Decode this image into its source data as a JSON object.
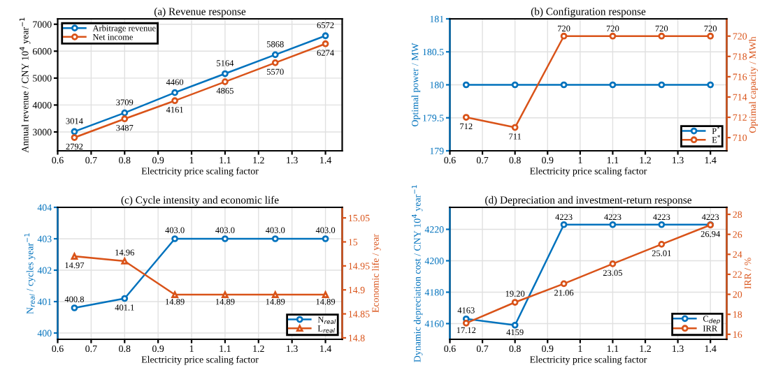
{
  "chart_data": [
    {
      "type": "line",
      "title": "(a) Revenue response",
      "xlabel": "Electricity price scaling factor",
      "ylabel": "Annual revenue / CNY 10$^{4}$ year$^{−1}$",
      "x": [
        0.65,
        0.8,
        0.95,
        1.1,
        1.25,
        1.4
      ],
      "xlim": [
        0.6,
        1.45
      ],
      "xticks": [
        0.6,
        0.7,
        0.8,
        0.9,
        1,
        1.1,
        1.2,
        1.3,
        1.4
      ],
      "ylim": [
        2300,
        7200
      ],
      "yticks": [
        3000,
        4000,
        5000,
        6000,
        7000
      ],
      "grid": true,
      "legend": "top left",
      "marker": "circle",
      "data_labels": true,
      "series": [
        {
          "name": "Arbitrage revenue",
          "color": "#0072bd",
          "values": [
            3014,
            3709,
            4460,
            5164,
            5868,
            6572
          ]
        },
        {
          "name": "Net income",
          "color": "#d95319",
          "values": [
            2792,
            3487,
            4161,
            4865,
            5570,
            6274
          ]
        }
      ]
    },
    {
      "type": "line",
      "title": "(b) Configuration response",
      "xlabel": "Electricity price scaling factor",
      "ylabel": "Optimal power / MW",
      "y2label": "Optimal capacity / MWh",
      "x": [
        0.65,
        0.8,
        0.95,
        1.1,
        1.25,
        1.4
      ],
      "xlim": [
        0.6,
        1.45
      ],
      "xticks": [
        0.6,
        0.7,
        0.8,
        0.9,
        1,
        1.1,
        1.2,
        1.3,
        1.4
      ],
      "ylim": [
        179,
        181
      ],
      "yticks": [
        179,
        179.5,
        180,
        180.5,
        181
      ],
      "y2lim": [
        708.7,
        721.7
      ],
      "y2ticks": [
        710,
        712,
        714,
        716,
        718,
        720
      ],
      "grid": true,
      "legend": "bottom right",
      "marker": "circle",
      "series": [
        {
          "name": "P$^{*}$",
          "color": "#0072bd",
          "values": [
            180,
            180,
            180,
            180,
            180,
            180
          ]
        },
        {
          "name": "E$^{*}$",
          "color": "#d95319",
          "axis": "y2",
          "values": [
            712,
            711,
            720,
            720,
            720,
            720
          ],
          "value_labels": [
            "712",
            "711",
            "720",
            "720",
            "720",
            "720"
          ]
        }
      ]
    },
    {
      "type": "line",
      "title": "(c) Cycle intensity and economic life",
      "xlabel": "Electricity price scaling factor",
      "ylabel": "N$_{real}$ / cycles year$^{−1}$",
      "y2label": "Economic life / year",
      "x": [
        0.65,
        0.8,
        0.95,
        1.1,
        1.25,
        1.4
      ],
      "xlim": [
        0.6,
        1.45
      ],
      "xticks": [
        0.6,
        0.7,
        0.8,
        0.9,
        1,
        1.1,
        1.2,
        1.3,
        1.4
      ],
      "ylim": [
        399.8,
        404
      ],
      "yticks": [
        400,
        401,
        402,
        403,
        404
      ],
      "y2lim": [
        14.797,
        15.072
      ],
      "y2ticks": [
        14.8,
        14.85,
        14.9,
        14.95,
        15,
        15.05
      ],
      "grid": true,
      "legend": "bottom right",
      "series": [
        {
          "name": "N$_{real}$",
          "color": "#0072bd",
          "marker": "circle",
          "values": [
            400.8,
            401.1,
            403.0,
            403.0,
            403.0,
            403.0
          ],
          "value_labels": [
            "400.8",
            "401.1",
            "403.0",
            "403.0",
            "403.0",
            "403.0"
          ]
        },
        {
          "name": "L$_{real}$",
          "color": "#d95319",
          "marker": "triangle",
          "axis": "y2",
          "values": [
            14.97,
            14.96,
            14.89,
            14.89,
            14.89,
            14.89
          ],
          "value_labels": [
            "14.97",
            "14.96",
            "14.89",
            "14.89",
            "14.89",
            "14.89"
          ]
        }
      ]
    },
    {
      "type": "line",
      "title": "(d) Depreciation and investment-return response",
      "xlabel": "Electricity price scaling factor",
      "ylabel": "Dynamic depreciation cost / CNY 10$^{4}$ year$^{−1}$",
      "y2label": "IRR / %",
      "x": [
        0.65,
        0.8,
        0.95,
        1.1,
        1.25,
        1.4
      ],
      "xlim": [
        0.6,
        1.45
      ],
      "xticks": [
        0.6,
        0.7,
        0.8,
        0.9,
        1,
        1.1,
        1.2,
        1.3,
        1.4
      ],
      "ylim": [
        4150,
        4234
      ],
      "yticks": [
        4160,
        4180,
        4200,
        4220
      ],
      "y2lim": [
        15.5,
        28.7
      ],
      "y2ticks": [
        16,
        18,
        20,
        22,
        24,
        26,
        28
      ],
      "grid": true,
      "legend": "bottom right",
      "marker": "circle",
      "series": [
        {
          "name": "C$_{dep}$",
          "color": "#0072bd",
          "values": [
            4163,
            4159,
            4223,
            4223,
            4223,
            4223
          ],
          "value_labels": [
            "4163",
            "4159",
            "4223",
            "4223",
            "4223",
            "4223"
          ]
        },
        {
          "name": "IRR",
          "color": "#d95319",
          "axis": "y2",
          "values": [
            17.12,
            19.2,
            21.06,
            23.05,
            25.01,
            26.94
          ],
          "value_labels": [
            "17.12",
            "19.20",
            "21.06",
            "23.05",
            "25.01",
            "26.94"
          ]
        }
      ]
    }
  ]
}
